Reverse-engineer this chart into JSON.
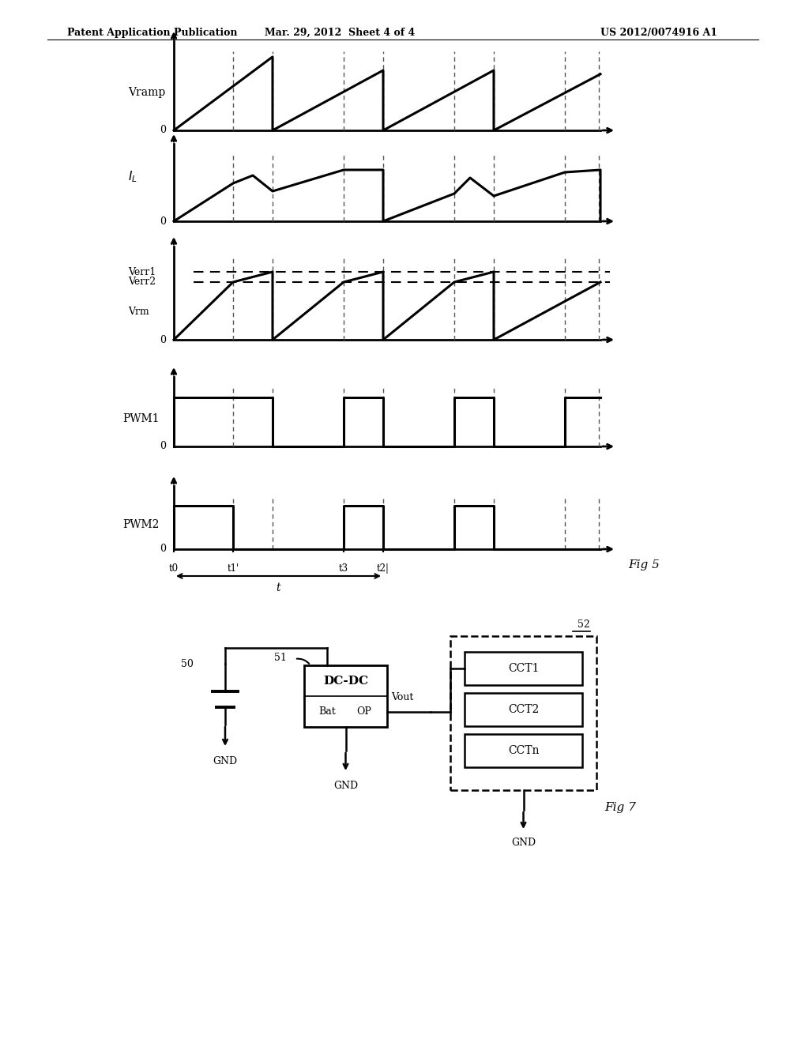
{
  "header_left": "Patent Application Publication",
  "header_center": "Mar. 29, 2012  Sheet 4 of 4",
  "header_right": "US 2012/0074916 A1",
  "fig5_label": "Fig 5",
  "fig7_label": "Fig 7",
  "bg_color": "#ffffff",
  "line_color": "#000000",
  "dashed_color": "#555555",
  "time_labels": [
    "t0",
    "t1'",
    "t3",
    "t2|"
  ],
  "time_label_t": "t",
  "verr_labels": [
    "Verr1",
    "Verr2",
    "Vrm"
  ],
  "dc_dc_label": "DC-DC",
  "bat_label": "Bat",
  "op_label": "OP",
  "vout_label": "Vout",
  "gnd_labels": [
    "GND",
    "GND",
    "GND"
  ],
  "node_51": "51",
  "node_52": "52",
  "node_50": "50",
  "cct_labels": [
    "CCT1",
    "CCT2",
    "CCTn"
  ]
}
